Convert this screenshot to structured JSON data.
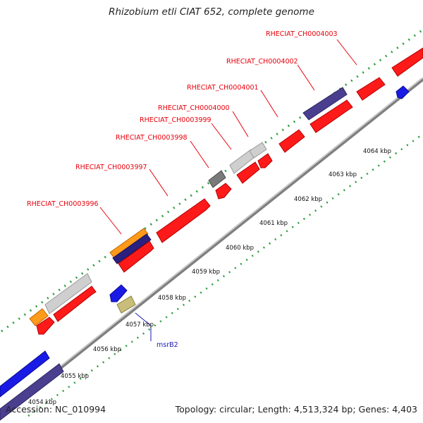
{
  "title": "Rhizobium etli CIAT 652, complete genome",
  "footer": {
    "accession": "Accession: NC_010994",
    "summary": "Topology: circular; Length: 4,513,324 bp; Genes: 4,403"
  },
  "gene_labels": [
    "RHECIAT_CH0004003",
    "RHECIAT_CH0004002",
    "RHECIAT_CH0004001",
    "RHECIAT_CH0004000",
    "RHECIAT_CH0003999",
    "RHECIAT_CH0003998",
    "RHECIAT_CH0003997",
    "RHECIAT_CH0003996"
  ],
  "special_label": "msrB2",
  "kbp_ticks": [
    "4054 kbp",
    "4055 kbp",
    "4056 kbp",
    "4057 kbp",
    "4058 kbp",
    "4059 kbp",
    "4060 kbp",
    "4061 kbp",
    "4062 kbp",
    "4063 kbp",
    "4064 kbp"
  ],
  "colors": {
    "cds": "#ff1a1a",
    "cds_dark": "#c40000",
    "pseudo": "#c8c8c8",
    "blue": "#1a1ae6",
    "navy": "#4a3f8f",
    "orange": "#ff9a1a",
    "olive": "#c8bd7a",
    "gray": "#7a7a7a",
    "backbone": "#9a9a9a",
    "gc_dot": "#2f9e3f",
    "tick_dot": "#2f9e3f"
  }
}
